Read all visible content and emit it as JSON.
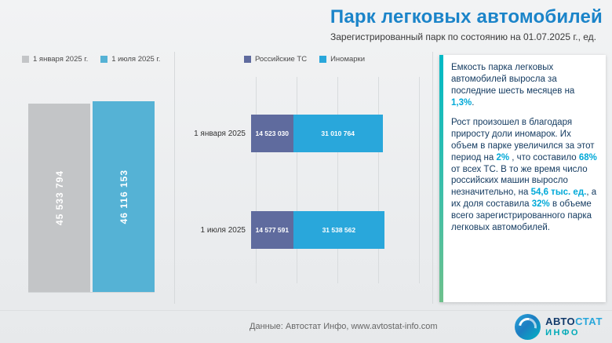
{
  "header": {
    "title": "Парк легковых автомобилей",
    "subtitle": "Зарегистрированный парк по состоянию на 01.07.2025 г., ед."
  },
  "chart_data": [
    {
      "type": "bar",
      "orientation": "vertical",
      "categories": [
        "1 января 2025 г.",
        "1 июля 2025 г."
      ],
      "values": [
        45533794,
        46116153
      ],
      "value_labels": [
        "45 533 794",
        "46 116 153"
      ],
      "colors": [
        "#c3c5c7",
        "#55b2d5"
      ],
      "ylim": [
        0,
        46116153
      ],
      "grid": false,
      "legend_position": "top"
    },
    {
      "type": "bar",
      "orientation": "horizontal",
      "stacked": true,
      "categories": [
        "1 января 2025",
        "1 июля 2025"
      ],
      "series": [
        {
          "name": "Российские ТС",
          "color": "#5f6b9e",
          "values": [
            14523030,
            14577591
          ],
          "value_labels": [
            "14 523 030",
            "14 577 591"
          ]
        },
        {
          "name": "Иномарки",
          "color": "#29a7db",
          "values": [
            31010764,
            31538562
          ],
          "value_labels": [
            "31 010 764",
            "31 538 562"
          ]
        }
      ],
      "xlim": [
        0,
        46116153
      ],
      "grid": true,
      "legend_position": "top"
    }
  ],
  "info_panel": {
    "highlight_color": "#00a9d8",
    "accent_colors": [
      "#00b9c6",
      "#6ec08c"
    ],
    "paragraphs": [
      [
        {
          "text": "Емкость парка легковых автомобилей выросла за последние шесть месяцев на "
        },
        {
          "text": "1,3%",
          "highlight": true
        },
        {
          "text": "."
        }
      ],
      [
        {
          "text": "Рост произошел в благодаря приросту доли иномарок. Их объем в парке увеличился за этот период на "
        },
        {
          "text": "2%",
          "highlight": true
        },
        {
          "text": " , что составило "
        },
        {
          "text": "68%",
          "highlight": true
        },
        {
          "text": " от всех ТС. В то же время число российских машин выросло незначительно, на "
        },
        {
          "text": "54,6 тыс. ед.",
          "highlight": true
        },
        {
          "text": ", а их доля составила "
        },
        {
          "text": "32%",
          "highlight": true
        },
        {
          "text": " в объеме всего зарегистрированного парка легковых автомобилей."
        }
      ]
    ]
  },
  "footer": {
    "source": "Данные: Автостат Инфо, www.avtostat-info.com",
    "logo": {
      "part1": "АВТО",
      "part2": "СТАТ",
      "part3": "ИНФО"
    }
  },
  "colors": {
    "title": "#1b84c9",
    "bar_january": "#c3c5c7",
    "bar_july": "#55b2d5",
    "segment_russian": "#5f6b9e",
    "segment_foreign": "#29a7db"
  }
}
